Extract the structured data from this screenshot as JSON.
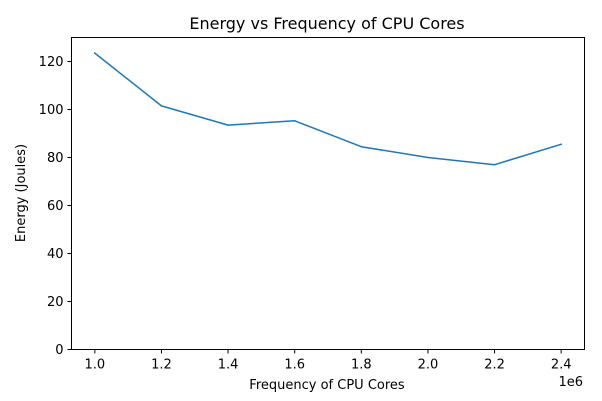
{
  "chart_data": {
    "type": "line",
    "title": "Energy vs Frequency of CPU Cores",
    "xlabel": "Frequency of CPU Cores",
    "ylabel": "Energy (Joules)",
    "x_offset_label": "1e6",
    "x_ticks": [
      "1.0",
      "1.2",
      "1.4",
      "1.6",
      "1.8",
      "2.0",
      "2.2",
      "2.4"
    ],
    "x_tick_values": [
      1.0,
      1.2,
      1.4,
      1.6,
      1.8,
      2.0,
      2.2,
      2.4
    ],
    "y_ticks": [
      "0",
      "20",
      "40",
      "60",
      "80",
      "100",
      "120"
    ],
    "y_tick_values": [
      0,
      20,
      40,
      60,
      80,
      100,
      120
    ],
    "xlim": [
      0.93,
      2.47
    ],
    "ylim": [
      0,
      130
    ],
    "grid": false,
    "series": [
      {
        "color": "#1f77b4",
        "x": [
          1.0,
          1.2,
          1.4,
          1.6,
          1.8,
          2.0,
          2.2,
          2.4
        ],
        "y": [
          123.5,
          101.5,
          93.5,
          95.3,
          84.5,
          80.0,
          77.0,
          85.5
        ]
      }
    ]
  }
}
